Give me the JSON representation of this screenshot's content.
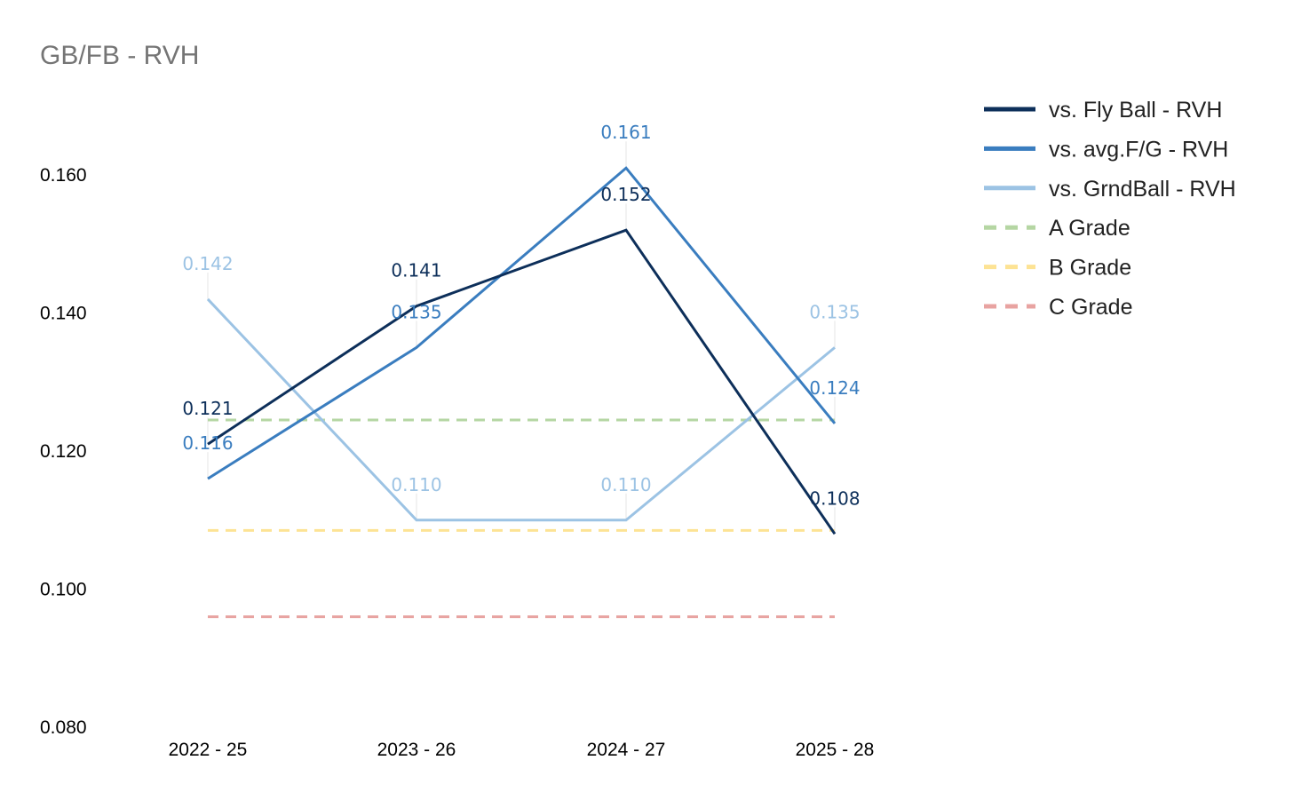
{
  "chart_data": {
    "type": "line",
    "title": "GB/FB - RVH",
    "categories": [
      "2022 - 25",
      "2023 - 26",
      "2024 - 27",
      "2025 - 28"
    ],
    "ylim": [
      0.08,
      0.16
    ],
    "yticks": [
      "0.080",
      "0.100",
      "0.120",
      "0.140",
      "0.160"
    ],
    "ytick_values": [
      0.08,
      0.1,
      0.12,
      0.14,
      0.16
    ],
    "xlabel": "",
    "ylabel": "",
    "grid": false,
    "legend_position": "right",
    "series": [
      {
        "name": "vs. Fly Ball - RVH",
        "color": "#0d2f5a",
        "dashed": false,
        "values": [
          0.121,
          0.141,
          0.152,
          0.108
        ],
        "labels": [
          "0.121",
          "0.141",
          "0.152",
          "0.108"
        ]
      },
      {
        "name": "vs. avg.F/G - RVH",
        "color": "#3a7dbf",
        "dashed": false,
        "values": [
          0.116,
          0.135,
          0.161,
          0.124
        ],
        "labels": [
          "0.116",
          "0.135",
          "0.161",
          "0.124"
        ]
      },
      {
        "name": "vs. GrndBall - RVH",
        "color": "#9cc3e4",
        "dashed": false,
        "values": [
          0.142,
          0.11,
          0.11,
          0.135
        ],
        "labels": [
          "0.142",
          "0.110",
          "0.110",
          "0.135"
        ]
      },
      {
        "name": "A Grade",
        "color": "#b5d6a3",
        "dashed": true,
        "values": [
          0.1245,
          0.1245,
          0.1245,
          0.1245
        ]
      },
      {
        "name": "B Grade",
        "color": "#fde394",
        "dashed": true,
        "values": [
          0.1085,
          0.1085,
          0.1085,
          0.1085
        ]
      },
      {
        "name": "C Grade",
        "color": "#e8a3a1",
        "dashed": true,
        "values": [
          0.096,
          0.096,
          0.096,
          0.096
        ]
      }
    ]
  }
}
